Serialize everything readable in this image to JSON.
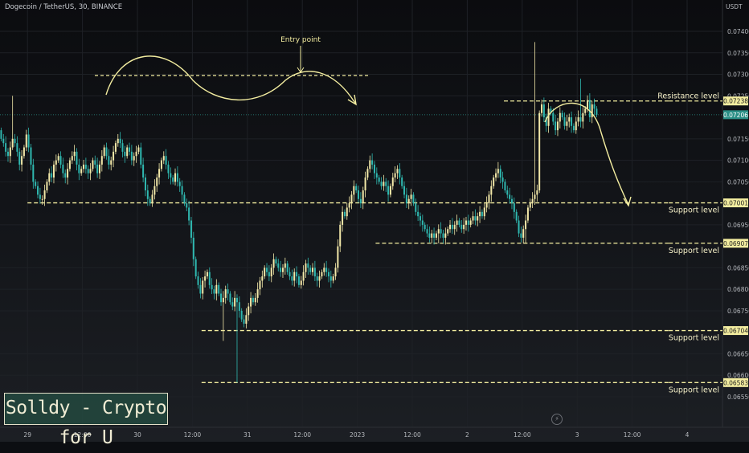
{
  "header": {
    "symbol_title": "Dogecoin / TetherUS, 30, BINANCE",
    "currency": "USDT"
  },
  "branding": {
    "text": "Solldy - Crypto for U"
  },
  "price_axis": {
    "ticks": [
      "0.07400",
      "0.07350",
      "0.07300",
      "0.07250",
      "0.07150",
      "0.07100",
      "0.07050",
      "0.06950",
      "0.06850",
      "0.06800",
      "0.06750",
      "0.06650",
      "0.06600",
      "0.06550"
    ]
  },
  "time_axis": {
    "ticks": [
      "29",
      "12:00",
      "30",
      "12:00",
      "31",
      "12:00",
      "2023",
      "12:00",
      "2",
      "12:00",
      "3",
      "12:00",
      "4"
    ]
  },
  "levels": [
    {
      "key": "resistance",
      "price": 0.07238,
      "label": "Resistance level",
      "tag": "0.07238",
      "start_x": "2023-01-02 08:00",
      "end_x": "2023-01-03 20:00"
    },
    {
      "key": "support1",
      "price": 0.07001,
      "label": "Support level",
      "tag": "0.07001",
      "start_x": "2022-12-29 00:00",
      "end_x": "2023-01-03 20:00"
    },
    {
      "key": "support2",
      "price": 0.06907,
      "label": "Support level",
      "tag": "0.06907",
      "start_x": "2023-01-01 04:00",
      "end_x": "2023-01-03 20:00"
    },
    {
      "key": "support3",
      "price": 0.06704,
      "label": "Support level",
      "tag": "0.06704",
      "start_x": "2022-12-30 14:00",
      "end_x": "2023-01-03 20:00"
    },
    {
      "key": "support4",
      "price": 0.06583,
      "label": "Support level",
      "tag": "0.06583",
      "start_x": "2022-12-30 14:00",
      "end_x": "2023-01-03 20:00"
    }
  ],
  "current_price": {
    "price": 0.07206,
    "tag": "0.07206"
  },
  "annotations": {
    "entry_label": "Entry point"
  },
  "colors": {
    "bull": "#f2e8a8",
    "bear": "#2fb8b0",
    "annotation": "#f3eda0",
    "current_price": "#2a8f86"
  },
  "chart_data": {
    "type": "candlestick",
    "title": "Dogecoin / TetherUS, 30, BINANCE",
    "x_start": "2022-12-28 18:00",
    "x_interval_minutes": 30,
    "ylim": [
      0.0651,
      0.0744
    ],
    "close": [
      0.0715,
      0.0714,
      0.0712,
      0.0711,
      0.0713,
      0.0715,
      0.0714,
      0.0712,
      0.0709,
      0.0711,
      0.0713,
      0.0716,
      0.0713,
      0.0709,
      0.0705,
      0.0704,
      0.0702,
      0.0701,
      0.0701,
      0.0703,
      0.0705,
      0.0707,
      0.0706,
      0.0709,
      0.071,
      0.0711,
      0.0709,
      0.0707,
      0.0706,
      0.0708,
      0.071,
      0.0711,
      0.0712,
      0.0709,
      0.0707,
      0.0708,
      0.0709,
      0.0708,
      0.0707,
      0.0708,
      0.071,
      0.0709,
      0.0707,
      0.0709,
      0.0711,
      0.0713,
      0.0711,
      0.0709,
      0.071,
      0.0712,
      0.0714,
      0.0715,
      0.0714,
      0.0712,
      0.0711,
      0.0713,
      0.0712,
      0.071,
      0.0711,
      0.0712,
      0.0713,
      0.0709,
      0.0706,
      0.0703,
      0.0701,
      0.07,
      0.0702,
      0.0704,
      0.0706,
      0.0708,
      0.071,
      0.0711,
      0.0709,
      0.0707,
      0.0706,
      0.0705,
      0.0707,
      0.0705,
      0.0704,
      0.0702,
      0.07,
      0.0699,
      0.0696,
      0.0692,
      0.0687,
      0.0683,
      0.0681,
      0.0679,
      0.0682,
      0.0683,
      0.0684,
      0.0681,
      0.068,
      0.0679,
      0.0681,
      0.0679,
      0.0677,
      0.0678,
      0.068,
      0.0679,
      0.0677,
      0.0676,
      0.0678,
      0.0677,
      0.0675,
      0.0673,
      0.0672,
      0.0674,
      0.0676,
      0.0678,
      0.0677,
      0.0678,
      0.068,
      0.0682,
      0.0683,
      0.0685,
      0.0684,
      0.0683,
      0.0685,
      0.0687,
      0.0686,
      0.0685,
      0.0684,
      0.0685,
      0.0686,
      0.0684,
      0.0683,
      0.0682,
      0.0684,
      0.0683,
      0.0681,
      0.0682,
      0.0684,
      0.0686,
      0.0685,
      0.0684,
      0.0685,
      0.0683,
      0.0682,
      0.0683,
      0.0684,
      0.0685,
      0.0684,
      0.0683,
      0.0682,
      0.0683,
      0.0685,
      0.069,
      0.0695,
      0.0698,
      0.0697,
      0.0699,
      0.07,
      0.0702,
      0.0704,
      0.0703,
      0.0701,
      0.07,
      0.0703,
      0.0706,
      0.0708,
      0.071,
      0.0709,
      0.0707,
      0.0706,
      0.0705,
      0.0704,
      0.0705,
      0.0704,
      0.0702,
      0.0704,
      0.0706,
      0.0707,
      0.0708,
      0.0706,
      0.0704,
      0.0702,
      0.07,
      0.0701,
      0.0702,
      0.07,
      0.0698,
      0.0697,
      0.0696,
      0.0695,
      0.0694,
      0.0693,
      0.0692,
      0.0693,
      0.0692,
      0.0693,
      0.0694,
      0.0693,
      0.0692,
      0.0693,
      0.0694,
      0.0695,
      0.0694,
      0.0695,
      0.0696,
      0.0695,
      0.0694,
      0.0695,
      0.0696,
      0.0695,
      0.0696,
      0.0697,
      0.0696,
      0.0697,
      0.0698,
      0.0697,
      0.0699,
      0.07,
      0.0702,
      0.0704,
      0.0706,
      0.0707,
      0.0708,
      0.0706,
      0.0705,
      0.0703,
      0.0702,
      0.0701,
      0.07,
      0.0698,
      0.0696,
      0.0693,
      0.0692,
      0.0694,
      0.0696,
      0.0699,
      0.07,
      0.0701,
      0.0702,
      0.0703,
      0.0721,
      0.0723,
      0.072,
      0.0718,
      0.0722,
      0.0721,
      0.0719,
      0.0717,
      0.0719,
      0.0721,
      0.072,
      0.0718,
      0.0719,
      0.072,
      0.0718,
      0.0717,
      0.0719,
      0.072,
      0.0719,
      0.0721,
      0.0722,
      0.0724,
      0.072,
      0.0723,
      0.0722,
      0.07206
    ],
    "highs": [
      {
        "index": 5,
        "value": 0.0725
      },
      {
        "index": 233,
        "value": 0.07375
      },
      {
        "index": 253,
        "value": 0.0729
      }
    ],
    "lows": [
      {
        "index": 97,
        "value": 0.0668
      },
      {
        "index": 103,
        "value": 0.06583
      },
      {
        "index": 191,
        "value": 0.06907
      },
      {
        "index": 229,
        "value": 0.06907
      }
    ]
  }
}
